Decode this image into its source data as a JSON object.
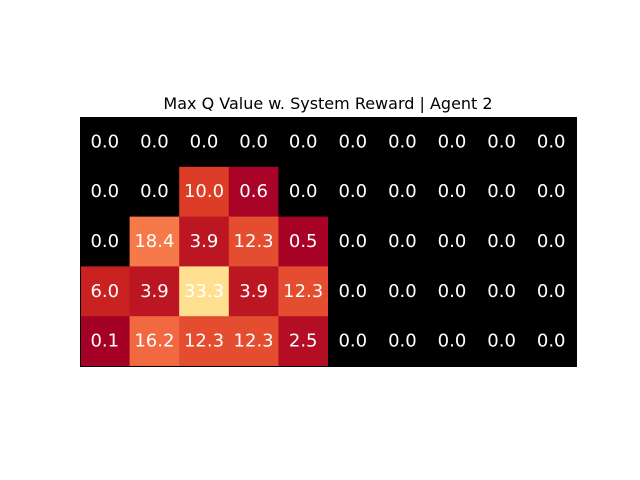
{
  "chart_data": {
    "type": "heatmap",
    "title": "Max Q Value w. System Reward | Agent 2",
    "xlabel": "",
    "ylabel": "",
    "rows": 5,
    "cols": 10,
    "values": [
      [
        0.0,
        0.0,
        0.0,
        0.0,
        0.0,
        0.0,
        0.0,
        0.0,
        0.0,
        0.0
      ],
      [
        0.0,
        0.0,
        10.0,
        0.6,
        0.0,
        0.0,
        0.0,
        0.0,
        0.0,
        0.0
      ],
      [
        0.0,
        18.4,
        3.9,
        12.3,
        0.5,
        0.0,
        0.0,
        0.0,
        0.0,
        0.0
      ],
      [
        6.0,
        3.9,
        33.3,
        3.9,
        12.3,
        0.0,
        0.0,
        0.0,
        0.0,
        0.0
      ],
      [
        0.1,
        16.2,
        12.3,
        12.3,
        2.5,
        0.0,
        0.0,
        0.0,
        0.0,
        0.0
      ]
    ],
    "labels": [
      [
        "0.0",
        "0.0",
        "0.0",
        "0.0",
        "0.0",
        "0.0",
        "0.0",
        "0.0",
        "0.0",
        "0.0"
      ],
      [
        "0.0",
        "0.0",
        "10.0",
        "0.6",
        "0.0",
        "0.0",
        "0.0",
        "0.0",
        "0.0",
        "0.0"
      ],
      [
        "0.0",
        "18.4",
        "3.9",
        "12.3",
        "0.5",
        "0.0",
        "0.0",
        "0.0",
        "0.0",
        "0.0"
      ],
      [
        "6.0",
        "3.9",
        "33.3",
        "3.9",
        "12.3",
        "0.0",
        "0.0",
        "0.0",
        "0.0",
        "0.0"
      ],
      [
        "0.1",
        "16.2",
        "12.3",
        "12.3",
        "2.5",
        "0.0",
        "0.0",
        "0.0",
        "0.0",
        "0.0"
      ]
    ],
    "zero_color": "#000000",
    "colormap": "YlOrRd (reversed, dark-red low to pale-yellow high)",
    "colormap_stops": [
      "#a50026",
      "#d7301f",
      "#f46d43",
      "#fdae61",
      "#fee090"
    ],
    "vmin": 0.1,
    "vmax": 33.3,
    "grid": false,
    "axes_ticks": false
  }
}
